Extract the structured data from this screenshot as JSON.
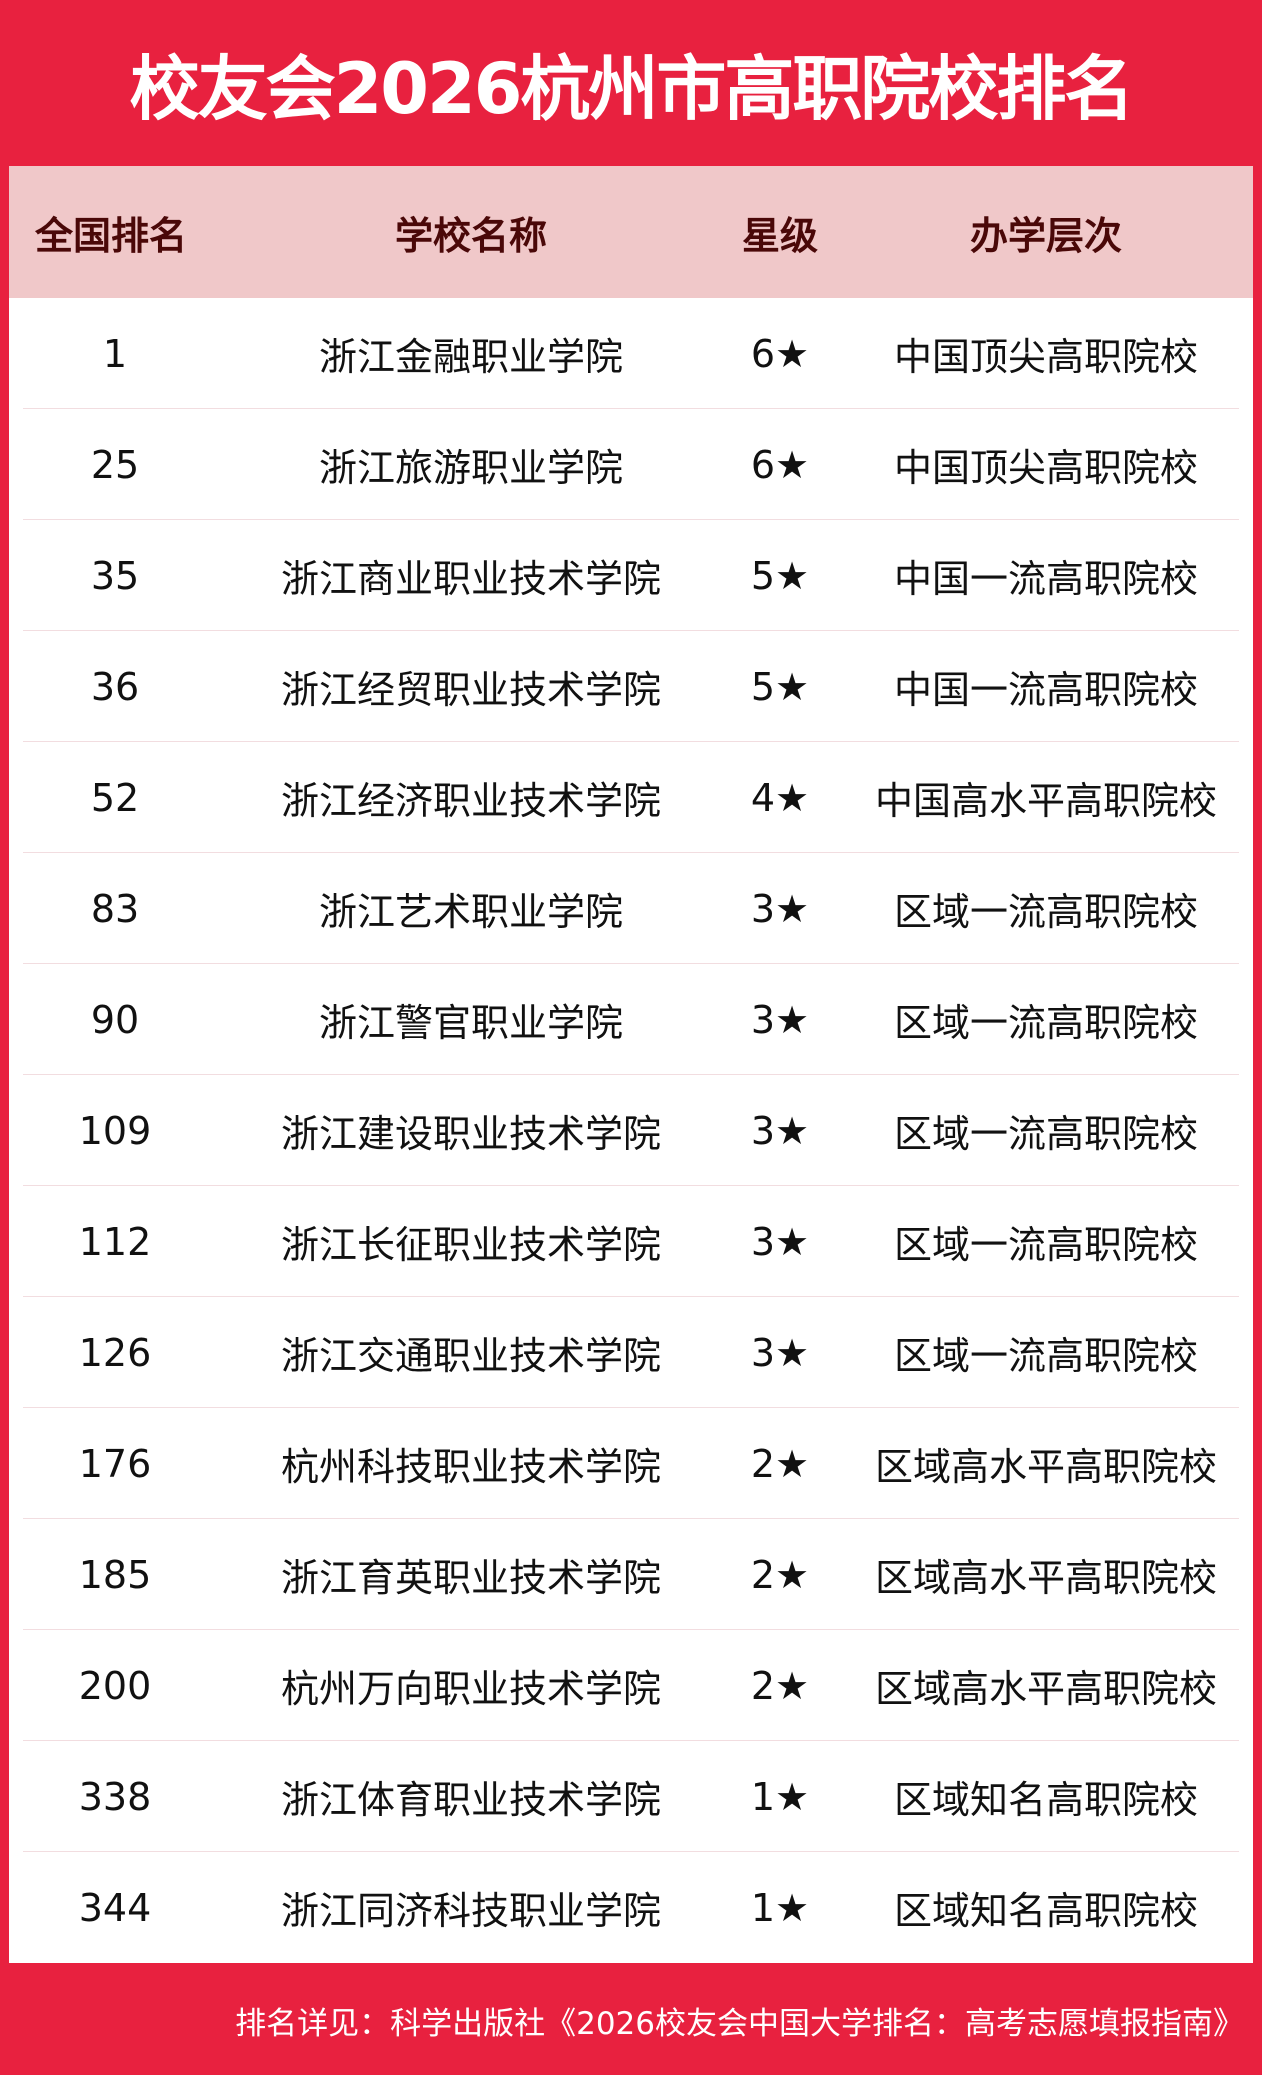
{
  "title": "校友会2026杭州市高职院校排名",
  "columns": [
    "全国排名",
    "学校名称",
    "星级",
    "办学层次"
  ],
  "rows": [
    {
      "rank": "1",
      "name": "浙江金融职业学院",
      "stars": "6★",
      "level": "中国顶尖高职院校"
    },
    {
      "rank": "25",
      "name": "浙江旅游职业学院",
      "stars": "6★",
      "level": "中国顶尖高职院校"
    },
    {
      "rank": "35",
      "name": "浙江商业职业技术学院",
      "stars": "5★",
      "level": "中国一流高职院校"
    },
    {
      "rank": "36",
      "name": "浙江经贸职业技术学院",
      "stars": "5★",
      "level": "中国一流高职院校"
    },
    {
      "rank": "52",
      "name": "浙江经济职业技术学院",
      "stars": "4★",
      "level": "中国高水平高职院校"
    },
    {
      "rank": "83",
      "name": "浙江艺术职业学院",
      "stars": "3★",
      "level": "区域一流高职院校"
    },
    {
      "rank": "90",
      "name": "浙江警官职业学院",
      "stars": "3★",
      "level": "区域一流高职院校"
    },
    {
      "rank": "109",
      "name": "浙江建设职业技术学院",
      "stars": "3★",
      "level": "区域一流高职院校"
    },
    {
      "rank": "112",
      "name": "浙江长征职业技术学院",
      "stars": "3★",
      "level": "区域一流高职院校"
    },
    {
      "rank": "126",
      "name": "浙江交通职业技术学院",
      "stars": "3★",
      "level": "区域一流高职院校"
    },
    {
      "rank": "176",
      "name": "杭州科技职业技术学院",
      "stars": "2★",
      "level": "区域高水平高职院校"
    },
    {
      "rank": "185",
      "name": "浙江育英职业技术学院",
      "stars": "2★",
      "level": "区域高水平高职院校"
    },
    {
      "rank": "200",
      "name": "杭州万向职业技术学院",
      "stars": "2★",
      "level": "区域高水平高职院校"
    },
    {
      "rank": "338",
      "name": "浙江体育职业技术学院",
      "stars": "1★",
      "level": "区域知名高职院校"
    },
    {
      "rank": "344",
      "name": "浙江同济科技职业学院",
      "stars": "1★",
      "level": "区域知名高职院校"
    }
  ],
  "footer": "排名详见：科学出版社《2026校友会中国大学排名：高考志愿填报指南》",
  "colors": {
    "brand_red": "#e8213f",
    "header_bg": "#f0c8c9",
    "header_text": "#4a0808"
  }
}
